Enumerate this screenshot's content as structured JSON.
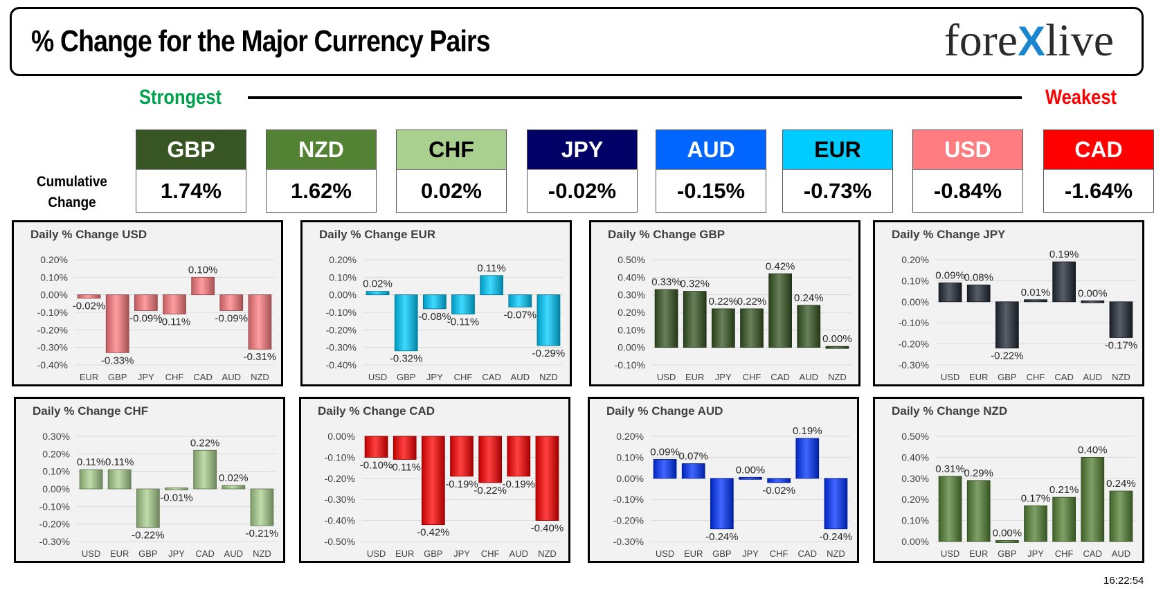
{
  "header": {
    "title": "% Change for the Major Currency Pairs",
    "logo_left": "fore",
    "logo_x": "X",
    "logo_right": "live"
  },
  "ranking": {
    "strongest_label": "Strongest",
    "weakest_label": "Weakest",
    "cumulative_label_1": "Cumulative",
    "cumulative_label_2": "Change",
    "items": [
      {
        "currency": "GBP",
        "value": "1.74%",
        "bg": "#375623",
        "fg": "#ffffff"
      },
      {
        "currency": "NZD",
        "value": "1.62%",
        "bg": "#548235",
        "fg": "#ffffff"
      },
      {
        "currency": "CHF",
        "value": "0.02%",
        "bg": "#a9d08e",
        "fg": "#000000"
      },
      {
        "currency": "JPY",
        "value": "-0.02%",
        "bg": "#000066",
        "fg": "#ffffff"
      },
      {
        "currency": "AUD",
        "value": "-0.15%",
        "bg": "#0066ff",
        "fg": "#ffffff"
      },
      {
        "currency": "EUR",
        "value": "-0.73%",
        "bg": "#00ccff",
        "fg": "#000000"
      },
      {
        "currency": "USD",
        "value": "-0.84%",
        "bg": "#ff7c80",
        "fg": "#ffffff"
      },
      {
        "currency": "CAD",
        "value": "-1.64%",
        "bg": "#ff0000",
        "fg": "#ffffff"
      }
    ]
  },
  "timestamp": "16:22:54",
  "chart_data": [
    {
      "type": "bar",
      "title": "Daily % Change USD",
      "categories": [
        "EUR",
        "GBP",
        "JPY",
        "CHF",
        "CAD",
        "AUD",
        "NZD"
      ],
      "values": [
        -0.02,
        -0.33,
        -0.09,
        -0.11,
        0.1,
        -0.09,
        -0.31
      ],
      "labels": [
        "-0.02%",
        "-0.33%",
        "-0.09%",
        "-0.11%",
        "0.10%",
        "-0.09%",
        "-0.31%"
      ],
      "ylim": [
        -0.4,
        0.2
      ],
      "yticks": [
        "0.20%",
        "0.10%",
        "0.00%",
        "-0.10%",
        "-0.20%",
        "-0.30%",
        "-0.40%"
      ],
      "color": "#ff7c80"
    },
    {
      "type": "bar",
      "title": "Daily % Change EUR",
      "categories": [
        "USD",
        "GBP",
        "JPY",
        "CHF",
        "CAD",
        "AUD",
        "NZD"
      ],
      "values": [
        0.02,
        -0.32,
        -0.08,
        -0.11,
        0.11,
        -0.07,
        -0.29
      ],
      "labels": [
        "0.02%",
        "-0.32%",
        "-0.08%",
        "-0.11%",
        "0.11%",
        "-0.07%",
        "-0.29%"
      ],
      "ylim": [
        -0.4,
        0.2
      ],
      "yticks": [
        "0.20%",
        "0.10%",
        "0.00%",
        "-0.10%",
        "-0.20%",
        "-0.30%",
        "-0.40%"
      ],
      "color": "#00ccff"
    },
    {
      "type": "bar",
      "title": "Daily % Change GBP",
      "categories": [
        "USD",
        "EUR",
        "JPY",
        "CHF",
        "CAD",
        "AUD",
        "NZD"
      ],
      "values": [
        0.33,
        0.32,
        0.22,
        0.22,
        0.42,
        0.24,
        0.0
      ],
      "labels": [
        "0.33%",
        "0.32%",
        "0.22%",
        "0.22%",
        "0.42%",
        "0.24%",
        "0.00%"
      ],
      "ylim": [
        -0.1,
        0.5
      ],
      "yticks": [
        "0.50%",
        "0.40%",
        "0.30%",
        "0.20%",
        "0.10%",
        "0.00%",
        "-0.10%"
      ],
      "color": "#375623"
    },
    {
      "type": "bar",
      "title": "Daily % Change JPY",
      "categories": [
        "USD",
        "EUR",
        "GBP",
        "CHF",
        "CAD",
        "AUD",
        "NZD"
      ],
      "values": [
        0.09,
        0.08,
        -0.22,
        0.01,
        0.19,
        0.0,
        -0.17
      ],
      "labels": [
        "0.09%",
        "0.08%",
        "-0.22%",
        "0.01%",
        "0.19%",
        "0.00%",
        "-0.17%"
      ],
      "ylim": [
        -0.3,
        0.2
      ],
      "yticks": [
        "0.20%",
        "0.10%",
        "0.00%",
        "-0.10%",
        "-0.20%",
        "-0.30%"
      ],
      "color": "#222a35"
    },
    {
      "type": "bar",
      "title": "Daily % Change CHF",
      "categories": [
        "USD",
        "EUR",
        "GBP",
        "JPY",
        "CAD",
        "AUD",
        "NZD"
      ],
      "values": [
        0.11,
        0.11,
        -0.22,
        -0.01,
        0.22,
        0.02,
        -0.21
      ],
      "labels": [
        "0.11%",
        "0.11%",
        "-0.22%",
        "-0.01%",
        "0.22%",
        "0.02%",
        "-0.21%"
      ],
      "ylim": [
        -0.3,
        0.3
      ],
      "yticks": [
        "0.30%",
        "0.20%",
        "0.10%",
        "0.00%",
        "-0.10%",
        "-0.20%",
        "-0.30%"
      ],
      "color": "#a9d08e"
    },
    {
      "type": "bar",
      "title": "Daily % Change CAD",
      "categories": [
        "USD",
        "EUR",
        "GBP",
        "JPY",
        "CHF",
        "AUD",
        "NZD"
      ],
      "values": [
        -0.1,
        -0.11,
        -0.42,
        -0.19,
        -0.22,
        -0.19,
        -0.4
      ],
      "labels": [
        "-0.10%",
        "-0.11%",
        "-0.42%",
        "-0.19%",
        "-0.22%",
        "-0.19%",
        "-0.40%"
      ],
      "ylim": [
        -0.5,
        0.0
      ],
      "yticks": [
        "0.00%",
        "-0.10%",
        "-0.20%",
        "-0.30%",
        "-0.40%",
        "-0.50%"
      ],
      "color": "#ff0000"
    },
    {
      "type": "bar",
      "title": "Daily % Change AUD",
      "categories": [
        "USD",
        "EUR",
        "GBP",
        "JPY",
        "CHF",
        "CAD",
        "NZD"
      ],
      "values": [
        0.09,
        0.07,
        -0.24,
        0.0,
        -0.02,
        0.19,
        -0.24
      ],
      "labels": [
        "0.09%",
        "0.07%",
        "-0.24%",
        "0.00%",
        "-0.02%",
        "0.19%",
        "-0.24%"
      ],
      "ylim": [
        -0.3,
        0.2
      ],
      "yticks": [
        "0.20%",
        "0.10%",
        "0.00%",
        "-0.10%",
        "-0.20%",
        "-0.30%"
      ],
      "color": "#0033ff"
    },
    {
      "type": "bar",
      "title": "Daily % Change NZD",
      "categories": [
        "USD",
        "EUR",
        "GBP",
        "JPY",
        "CHF",
        "CAD",
        "AUD"
      ],
      "values": [
        0.31,
        0.29,
        0.0,
        0.17,
        0.21,
        0.4,
        0.24
      ],
      "labels": [
        "0.31%",
        "0.29%",
        "0.00%",
        "0.17%",
        "0.21%",
        "0.40%",
        "0.24%"
      ],
      "ylim": [
        0.0,
        0.5
      ],
      "yticks": [
        "0.50%",
        "0.40%",
        "0.30%",
        "0.20%",
        "0.10%",
        "0.00%"
      ],
      "color": "#548235"
    }
  ]
}
